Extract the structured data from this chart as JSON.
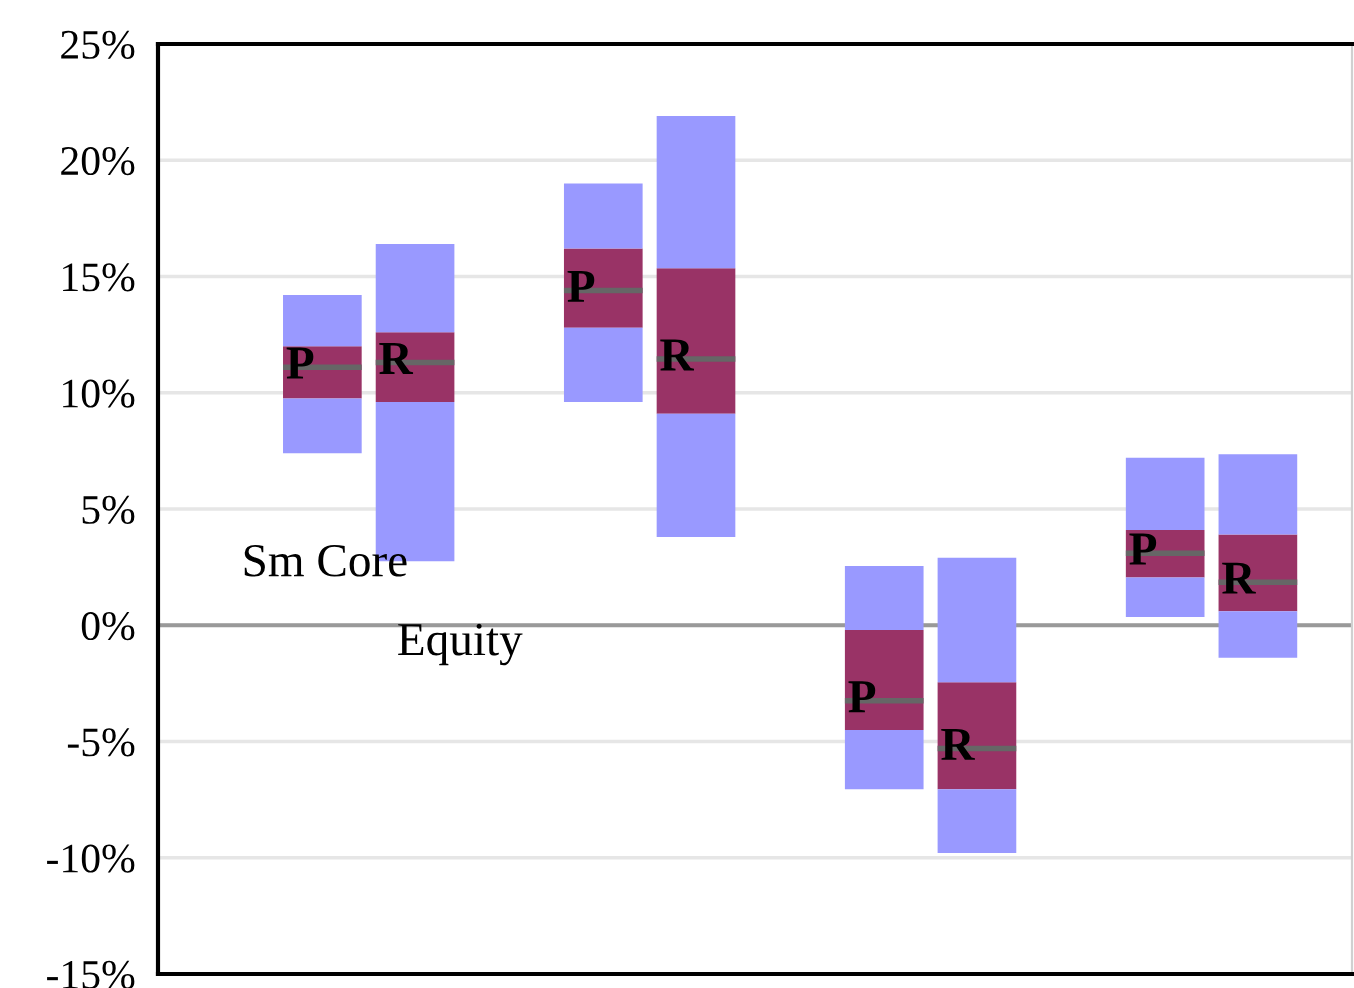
{
  "chart_data": {
    "type": "box",
    "categories": [
      null,
      null,
      null,
      null
    ],
    "series": [
      {
        "name": "P",
        "color": "#993366",
        "boxes": [
          {
            "low": 7.4,
            "q1": 9.75,
            "median": 11.1,
            "q3": 12.0,
            "high": 14.2
          },
          {
            "low": 9.6,
            "q1": 12.8,
            "median": 14.4,
            "q3": 16.2,
            "high": 19.0
          },
          {
            "low": -7.05,
            "q1": -4.5,
            "median": -3.25,
            "q3": -0.2,
            "high": 2.55
          },
          {
            "low": 0.35,
            "q1": 2.05,
            "median": 3.1,
            "q3": 4.1,
            "high": 7.2
          }
        ]
      },
      {
        "name": "R",
        "color": "#993366",
        "boxes": [
          {
            "low": 2.75,
            "q1": 9.6,
            "median": 11.3,
            "q3": 12.6,
            "high": 16.4
          },
          {
            "low": 3.8,
            "q1": 9.1,
            "median": 11.45,
            "q3": 15.35,
            "high": 21.9
          },
          {
            "low": -9.8,
            "q1": -7.05,
            "median": -5.3,
            "q3": -2.45,
            "high": 2.9
          },
          {
            "low": -1.4,
            "q1": 0.6,
            "median": 1.85,
            "q3": 3.9,
            "high": 7.35
          }
        ]
      }
    ],
    "ylim": [
      -15,
      25
    ],
    "yticks": [
      {
        "value": -15,
        "label": "-15%"
      },
      {
        "value": -10,
        "label": "-10%"
      },
      {
        "value": -5,
        "label": "-5%"
      },
      {
        "value": 0,
        "label": "0%"
      },
      {
        "value": 5,
        "label": "5%"
      },
      {
        "value": 10,
        "label": "10%"
      },
      {
        "value": 15,
        "label": "15%"
      },
      {
        "value": 20,
        "label": "20%"
      },
      {
        "value": 25,
        "label": "25%"
      }
    ],
    "ref_lines": [
      {
        "axis": "y",
        "value": 0,
        "color": "#999999"
      }
    ],
    "annotations": [
      "Sm Core",
      "Equity"
    ],
    "grid": "y",
    "legend": false,
    "tick_labels": "y"
  }
}
